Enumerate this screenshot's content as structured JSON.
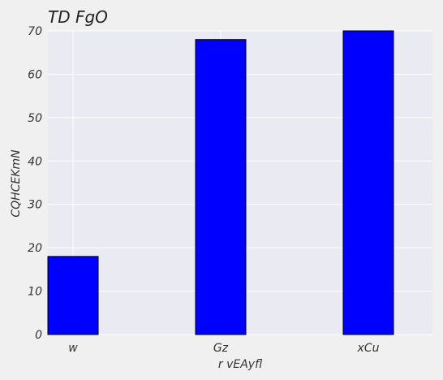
{
  "chart_data": {
    "type": "bar",
    "title": "TD FgO",
    "xlabel": "r  vEAyfl",
    "ylabel": "CQHCEKmN",
    "categories": [
      "w",
      "Gz",
      "xCu"
    ],
    "values": [
      18,
      68,
      70
    ],
    "ylim": [
      0,
      70
    ],
    "yticks": [
      0,
      10,
      20,
      30,
      40,
      50,
      60,
      70
    ],
    "grid": true,
    "colors": {
      "bar": "#0000ff",
      "bar_edge": "#000000",
      "plot_bg": "#eaeaf2",
      "grid": "#ffffff"
    }
  }
}
